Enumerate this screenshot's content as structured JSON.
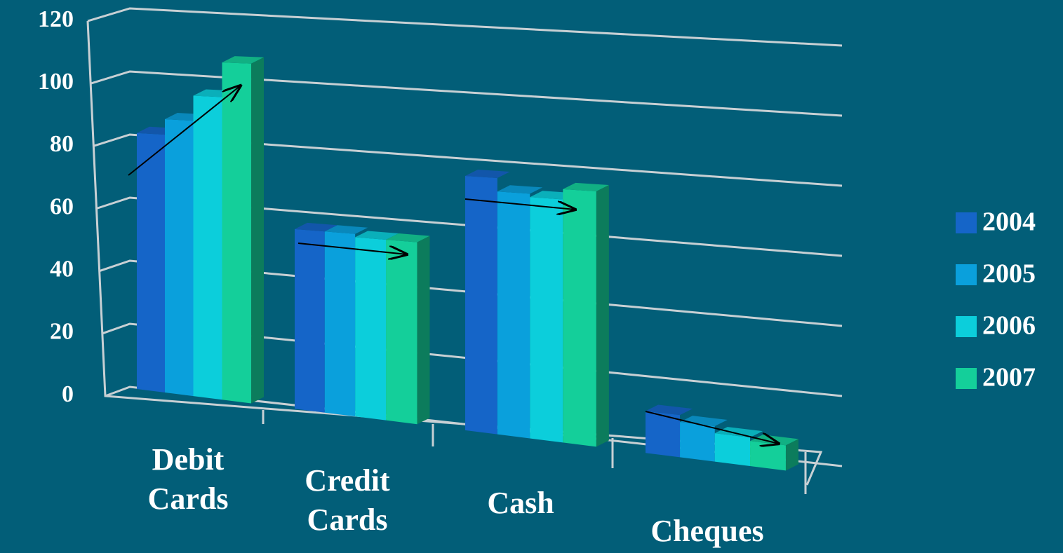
{
  "chart_data": {
    "type": "bar3d",
    "categories": [
      "Debit Cards",
      "Credit Cards",
      "Cash",
      "Cheques"
    ],
    "series": [
      {
        "name": "2004",
        "color": "#1565c8",
        "values": [
          83,
          56,
          76,
          12
        ]
      },
      {
        "name": "2005",
        "color": "#0aa0dc",
        "values": [
          88,
          56,
          72,
          10
        ]
      },
      {
        "name": "2006",
        "color": "#0ccedb",
        "values": [
          96,
          55,
          71,
          8
        ]
      },
      {
        "name": "2007",
        "color": "#14cf9a",
        "values": [
          107,
          55,
          74,
          7
        ]
      }
    ],
    "ylim": [
      0,
      120
    ],
    "yticks": [
      0,
      20,
      40,
      60,
      80,
      100,
      120
    ],
    "grid": true,
    "legend": "right"
  }
}
